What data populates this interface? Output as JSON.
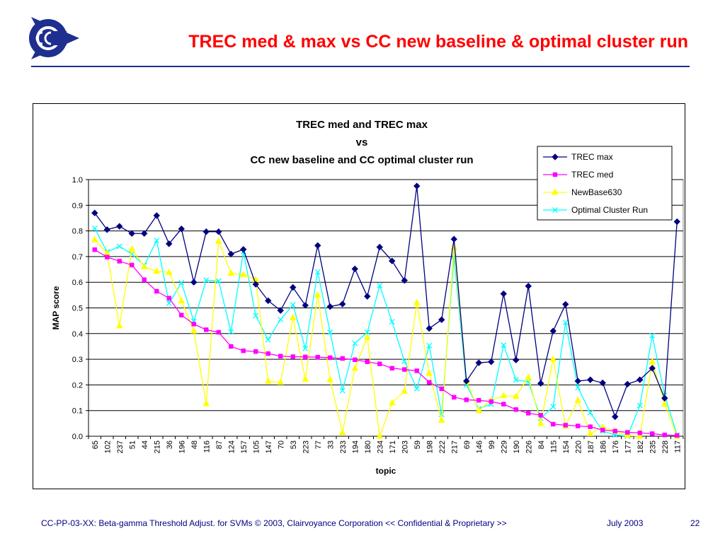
{
  "slide": {
    "title": "TREC med & max vs CC new baseline & optimal cluster run"
  },
  "footer": {
    "left": "CC-PP-03-XX: Beta-gamma Threshold Adjust. for SVMs © 2003, Clairvoyance Corporation  << Confidential & Proprietary >>",
    "date": "July 2003",
    "page": "22"
  },
  "colors": {
    "title": "#ff0000",
    "rule": "#1f2f8f",
    "logo": "#1f2f8f",
    "footer": "#000080"
  },
  "chart_data": {
    "type": "line",
    "title_lines": [
      "TREC med and TREC max",
      "vs",
      "CC new baseline and CC optimal cluster run"
    ],
    "xlabel": "topic",
    "ylabel": "MAP score",
    "ylim": [
      0,
      1
    ],
    "yticks": [
      "0.0",
      "0.1",
      "0.2",
      "0.3",
      "0.4",
      "0.5",
      "0.6",
      "0.7",
      "0.8",
      "0.9",
      "1.0"
    ],
    "grid": "horizontal",
    "legend_position": "top-right",
    "categories": [
      "65",
      "102",
      "237",
      "51",
      "44",
      "215",
      "36",
      "196",
      "48",
      "116",
      "87",
      "124",
      "157",
      "105",
      "147",
      "70",
      "53",
      "223",
      "77",
      "33",
      "233",
      "194",
      "180",
      "234",
      "171",
      "203",
      "59",
      "198",
      "222",
      "217",
      "69",
      "146",
      "99",
      "229",
      "190",
      "226",
      "84",
      "115",
      "154",
      "220",
      "187",
      "186",
      "176",
      "177",
      "182",
      "235",
      "228",
      "117"
    ],
    "series": [
      {
        "name": "TREC max",
        "color": "#000080",
        "marker": "diamond",
        "values": [
          0.87,
          0.805,
          0.818,
          0.79,
          0.79,
          0.86,
          0.75,
          0.808,
          0.6,
          0.797,
          0.797,
          0.71,
          0.728,
          0.592,
          0.528,
          0.49,
          0.58,
          0.51,
          0.743,
          0.505,
          0.515,
          0.652,
          0.545,
          0.737,
          0.683,
          0.607,
          0.975,
          0.42,
          0.454,
          0.768,
          0.215,
          0.286,
          0.29,
          0.555,
          0.297,
          0.585,
          0.206,
          0.41,
          0.514,
          0.215,
          0.22,
          0.208,
          0.076,
          0.203,
          0.22,
          0.265,
          0.148,
          0.836
        ]
      },
      {
        "name": "TREC med",
        "color": "#ff00ff",
        "marker": "square",
        "values": [
          0.727,
          0.698,
          0.682,
          0.667,
          0.61,
          0.565,
          0.538,
          0.472,
          0.437,
          0.415,
          0.405,
          0.35,
          0.333,
          0.33,
          0.322,
          0.312,
          0.31,
          0.309,
          0.308,
          0.306,
          0.303,
          0.298,
          0.29,
          0.282,
          0.265,
          0.26,
          0.255,
          0.21,
          0.185,
          0.152,
          0.142,
          0.14,
          0.135,
          0.125,
          0.104,
          0.09,
          0.082,
          0.047,
          0.043,
          0.04,
          0.037,
          0.024,
          0.02,
          0.015,
          0.013,
          0.01,
          0.005,
          0.003
        ]
      },
      {
        "name": "NewBase630",
        "color": "#ffff00",
        "marker": "triangle",
        "values": [
          0.766,
          0.713,
          0.43,
          0.73,
          0.66,
          0.643,
          0.638,
          0.528,
          0.41,
          0.127,
          0.76,
          0.635,
          0.63,
          0.61,
          0.215,
          0.21,
          0.462,
          0.222,
          0.55,
          0.22,
          0.014,
          0.265,
          0.385,
          0.0,
          0.13,
          0.175,
          0.52,
          0.245,
          0.062,
          0.735,
          0.215,
          0.1,
          0.14,
          0.158,
          0.155,
          0.23,
          0.05,
          0.3,
          0.04,
          0.14,
          0.01,
          0.035,
          0.02,
          0.003,
          0.0,
          0.29,
          0.125,
          0.0
        ]
      },
      {
        "name": "Optimal Cluster Run",
        "color": "#00ffff",
        "marker": "x",
        "values": [
          0.81,
          0.718,
          0.74,
          0.71,
          0.665,
          0.763,
          0.518,
          0.598,
          0.448,
          0.608,
          0.605,
          0.407,
          0.72,
          0.47,
          0.376,
          0.455,
          0.512,
          0.342,
          0.64,
          0.405,
          0.178,
          0.362,
          0.405,
          0.587,
          0.446,
          0.292,
          0.185,
          0.353,
          0.085,
          0.7,
          0.2,
          0.107,
          0.125,
          0.355,
          0.22,
          0.212,
          0.07,
          0.115,
          0.443,
          0.19,
          0.092,
          0.02,
          0.005,
          0.0,
          0.12,
          0.392,
          0.16,
          0.005
        ]
      }
    ]
  }
}
